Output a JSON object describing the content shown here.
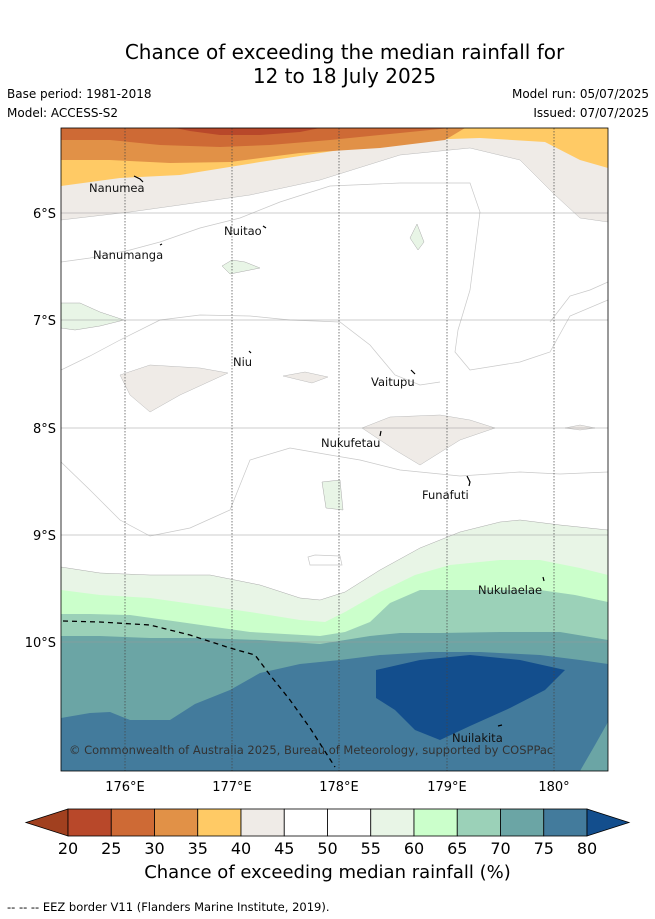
{
  "title_line1": "Chance of exceeding the median rainfall for",
  "title_line2": "12 to 18 July 2025",
  "base_period": "Base period: 1981-2018",
  "model": "Model: ACCESS-S2",
  "model_run": "Model run: 05/07/2025",
  "issued": "Issued: 07/07/2025",
  "places": [
    "Nanumea",
    "Nuitao",
    "Nanumanga",
    "Niu",
    "Vaitupu",
    "Nukufetau",
    "Funafuti",
    "Nukulaelae",
    "Nuilakita"
  ],
  "lat_labels": [
    "6°S",
    "7°S",
    "8°S",
    "9°S",
    "10°S"
  ],
  "lon_labels": [
    "176°E",
    "177°E",
    "178°E",
    "179°E",
    "180°"
  ],
  "copyright": "© Commonwealth of Australia 2025, Bureau of Meteorology, supported by COSPPac",
  "colorbar": {
    "ticks": [
      "20",
      "25",
      "30",
      "35",
      "40",
      "45",
      "50",
      "55",
      "60",
      "65",
      "70",
      "75",
      "80"
    ],
    "colors": [
      "#b8482a",
      "#ce6a35",
      "#e19147",
      "#ffca65",
      "#efebe7",
      "#ffffff",
      "#ffffff",
      "#e8f5e6",
      "#cbffcb",
      "#9bd1b8",
      "#6ba5a5",
      "#437b9c",
      "#134e8d"
    ],
    "label": "Chance of exceeding median rainfall (%)"
  },
  "eez_note": "--  --  -- EEZ border V11 (Flanders Marine Institute, 2019)."
}
